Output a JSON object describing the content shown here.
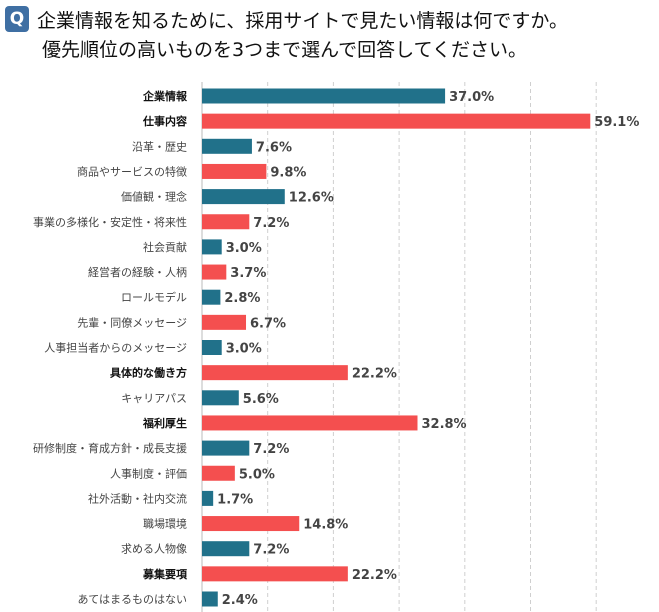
{
  "question_badge": "Q",
  "title_line1": "企業情報を知るために、採用サイトで見たい情報は何ですか。",
  "title_line2": "優先順位の高いものを3つまで選んで回答してください。",
  "chart_data": {
    "type": "bar",
    "orientation": "horizontal",
    "unit": "%",
    "xlim": [
      0,
      70
    ],
    "grid": "vertical dashed",
    "colors": {
      "teal": "#21718a",
      "red": "#f44f4f"
    },
    "categories": [
      "企業情報",
      "仕事内容",
      "沿革・歴史",
      "商品やサービスの特徴",
      "価値観・理念",
      "事業の多様化・安定性・将来性",
      "社会貢献",
      "経営者の経験・人柄",
      "ロールモデル",
      "先輩・同僚メッセージ",
      "人事担当者からのメッセージ",
      "具体的な働き方",
      "キャリアパス",
      "福利厚生",
      "研修制度・育成方針・成長支援",
      "人事制度・評価",
      "社外活動・社内交流",
      "職場環境",
      "求める人物像",
      "募集要項",
      "あてはまるものはない"
    ],
    "values": [
      37.0,
      59.1,
      7.6,
      9.8,
      12.6,
      7.2,
      3.0,
      3.7,
      2.8,
      6.7,
      3.0,
      22.2,
      5.6,
      32.8,
      7.2,
      5.0,
      1.7,
      14.8,
      7.2,
      22.2,
      2.4
    ],
    "data_labels": [
      "37.0%",
      "59.1%",
      "7.6%",
      "9.8%",
      "12.6%",
      "7.2%",
      "3.0%",
      "3.7%",
      "2.8%",
      "6.7%",
      "3.0%",
      "22.2%",
      "5.6%",
      "32.8%",
      "7.2%",
      "5.0%",
      "1.7%",
      "14.8%",
      "7.2%",
      "22.2%",
      "2.4%"
    ],
    "bold_categories": [
      "企業情報",
      "仕事内容",
      "具体的な働き方",
      "福利厚生",
      "募集要項"
    ]
  }
}
